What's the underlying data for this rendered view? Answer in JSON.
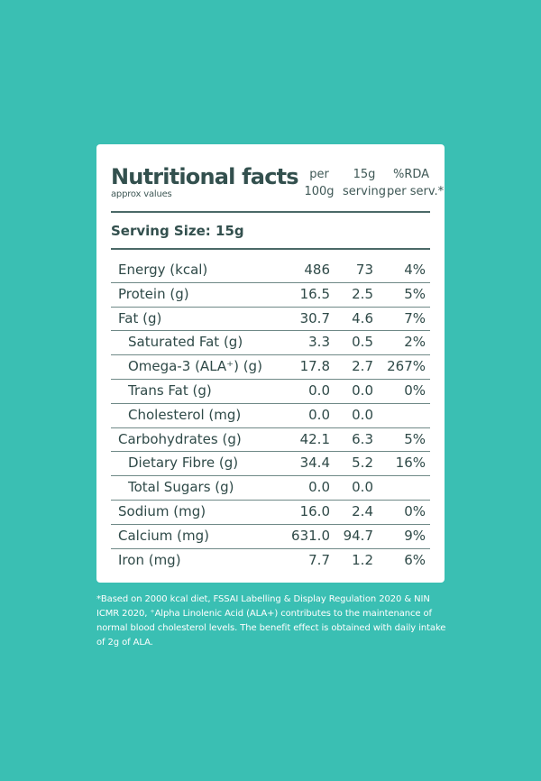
{
  "panel": {
    "title": "Nutritional facts",
    "subtitle": "approx values",
    "col_per_100g": [
      "per",
      "100g"
    ],
    "col_serving": [
      "15g",
      "serving"
    ],
    "col_rda": [
      "%RDA",
      "per serv.*"
    ],
    "serving_size": "Serving Size: 15g",
    "rows": [
      {
        "name": "Energy (kcal)",
        "per100g": "486",
        "serving": "73",
        "rda": "4%",
        "sub": false
      },
      {
        "name": "Protein (g)",
        "per100g": "16.5",
        "serving": "2.5",
        "rda": "5%",
        "sub": false
      },
      {
        "name": "Fat (g)",
        "per100g": "30.7",
        "serving": "4.6",
        "rda": "7%",
        "sub": false
      },
      {
        "name": "Saturated Fat (g)",
        "per100g": "3.3",
        "serving": "0.5",
        "rda": "2%",
        "sub": true
      },
      {
        "name": "Omega-3 (ALA⁺) (g)",
        "per100g": "17.8",
        "serving": "2.7",
        "rda": "267%",
        "sub": true
      },
      {
        "name": "Trans Fat (g)",
        "per100g": "0.0",
        "serving": "0.0",
        "rda": "0%",
        "sub": true
      },
      {
        "name": "Cholesterol (mg)",
        "per100g": "0.0",
        "serving": "0.0",
        "rda": "",
        "sub": true
      },
      {
        "name": "Carbohydrates (g)",
        "per100g": "42.1",
        "serving": "6.3",
        "rda": "5%",
        "sub": false
      },
      {
        "name": "Dietary Fibre (g)",
        "per100g": "34.4",
        "serving": "5.2",
        "rda": "16%",
        "sub": true
      },
      {
        "name": "Total Sugars (g)",
        "per100g": "0.0",
        "serving": "0.0",
        "rda": "",
        "sub": true
      },
      {
        "name": "Sodium (mg)",
        "per100g": "16.0",
        "serving": "2.4",
        "rda": "0%",
        "sub": false
      },
      {
        "name": "Calcium (mg)",
        "per100g": "631.0",
        "serving": "94.7",
        "rda": "9%",
        "sub": false
      },
      {
        "name": "Iron (mg)",
        "per100g": "7.7",
        "serving": "1.2",
        "rda": "6%",
        "sub": false
      }
    ]
  },
  "footnote": "*Based on 2000 kcal diet, FSSAI Labelling & Display Regulation 2020 & NIN ICMR 2020, ⁺Alpha Linolenic Acid (ALA+) contributes to the maintenance of normal blood cholesterol levels. The benefit effect is obtained with daily intake of 2g of ALA.",
  "colors": {
    "background": "#3abfb3",
    "card": "#ffffff",
    "text": "#2f4a48",
    "rule": "#4b6967"
  }
}
